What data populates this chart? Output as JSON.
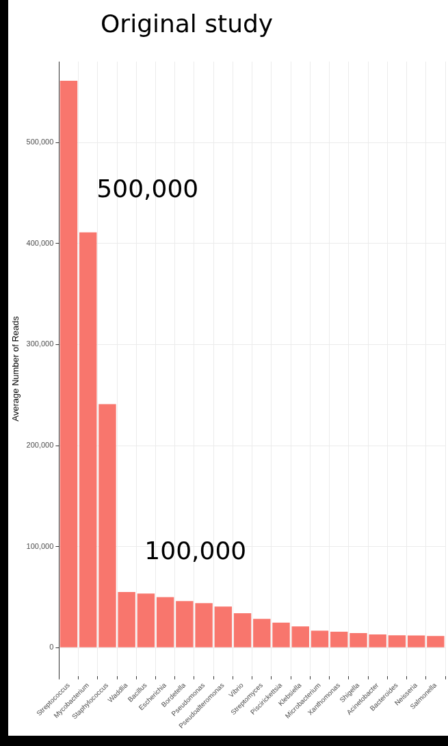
{
  "chart_data": {
    "type": "bar",
    "title": "Original study",
    "ylabel": "Average Number of Reads",
    "categories": [
      "Streptococcus",
      "Mycobacterium",
      "Staphylococcus",
      "Waddlia",
      "Bacillus",
      "Escherichia",
      "Bordetella",
      "Pseudomonas",
      "Pseudoalteromonas",
      "Vibrio",
      "Streptomyces",
      "Piscirickettsia",
      "Klebsiella",
      "Microbacterium",
      "Xanthomonas",
      "Shigella",
      "Acinetobacter",
      "Bacteroides",
      "Neisseria",
      "Salmonella"
    ],
    "values": [
      561000,
      411000,
      241000,
      55000,
      53500,
      50000,
      46000,
      44000,
      40700,
      34000,
      28400,
      24800,
      21000,
      16800,
      15800,
      14400,
      13000,
      12200,
      12000,
      11500
    ],
    "color": "#f8766d",
    "ylim": [
      -28000,
      580000
    ],
    "yticks": [
      {
        "value": 0,
        "label": "0"
      },
      {
        "value": 100000,
        "label": "100,000"
      },
      {
        "value": 200000,
        "label": "200,000"
      },
      {
        "value": 300000,
        "label": "300,000"
      },
      {
        "value": 400000,
        "label": "400,000"
      },
      {
        "value": 500000,
        "label": "500,000"
      }
    ],
    "grid": true,
    "annotations": [
      "500,000",
      "100,000"
    ]
  }
}
